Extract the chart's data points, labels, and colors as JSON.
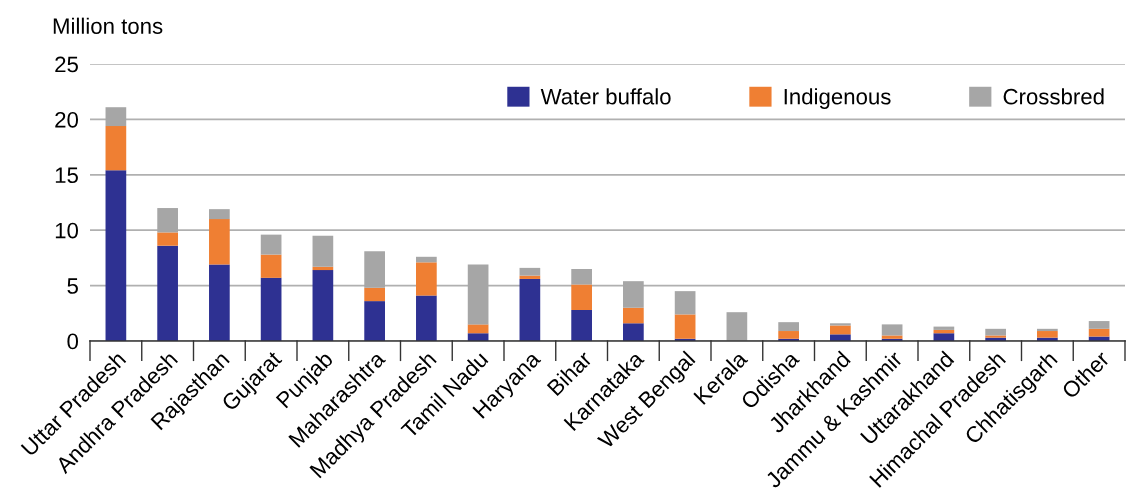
{
  "chart_data": {
    "type": "bar",
    "stacked": true,
    "ylabel": "Million tons",
    "categories": [
      "Uttar Pradesh",
      "Andhra Pradesh",
      "Rajasthan",
      "Gujarat",
      "Punjab",
      "Maharashtra",
      "Madhya Pradesh",
      "Tamil Nadu",
      "Haryana",
      "Bihar",
      "Karnataka",
      "West Bengal",
      "Kerala",
      "Odisha",
      "Jharkhand",
      "Jammu & Kashmir",
      "Uttarakhand",
      "Himachal Pradesh",
      "Chhatisgarh",
      "Other"
    ],
    "series": [
      {
        "name": "Water buffalo",
        "color": "#2e3192",
        "values": [
          15.4,
          8.6,
          6.9,
          5.7,
          6.4,
          3.6,
          4.1,
          0.7,
          5.6,
          2.8,
          1.6,
          0.2,
          0,
          0.2,
          0.6,
          0.2,
          0.7,
          0.3,
          0.3,
          0.4
        ]
      },
      {
        "name": "Indigenous",
        "color": "#ef7f33",
        "values": [
          4.0,
          1.2,
          4.1,
          2.1,
          0.3,
          1.2,
          3.0,
          0.8,
          0.3,
          2.3,
          1.4,
          2.2,
          0,
          0.7,
          0.8,
          0.3,
          0.3,
          0.2,
          0.6,
          0.7
        ]
      },
      {
        "name": "Crossbred",
        "color": "#a6a6a6",
        "values": [
          1.7,
          2.2,
          0.9,
          1.8,
          2.8,
          3.3,
          0.5,
          5.4,
          0.7,
          1.4,
          2.4,
          2.1,
          2.6,
          0.8,
          0.2,
          1.0,
          0.3,
          0.6,
          0.2,
          0.7
        ]
      }
    ],
    "ylim": [
      0,
      25
    ],
    "yticks": [
      0,
      5,
      10,
      15,
      20,
      25
    ],
    "grid": "y",
    "legend": "top right"
  }
}
